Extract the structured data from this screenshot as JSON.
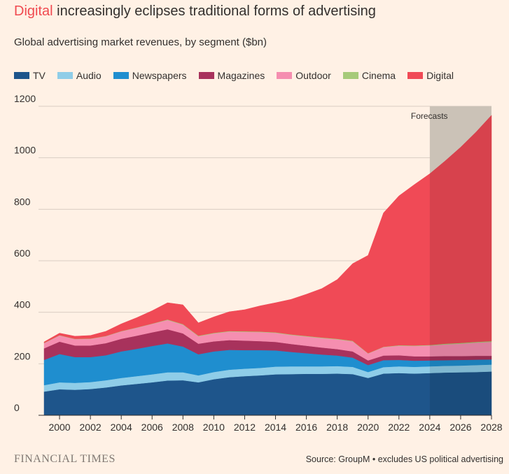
{
  "title": {
    "highlight": "Digital",
    "rest": " increasingly eclipses traditional forms of advertising"
  },
  "subtitle": "Global advertising market revenues, by segment ($bn)",
  "footer": {
    "logo": "FINANCIAL TIMES",
    "source": "Source: GroupM • excludes US political advertising"
  },
  "chart_data": {
    "type": "area",
    "stacked": true,
    "x": [
      1999,
      2000,
      2001,
      2002,
      2003,
      2004,
      2005,
      2006,
      2007,
      2008,
      2009,
      2010,
      2011,
      2012,
      2013,
      2014,
      2015,
      2016,
      2017,
      2018,
      2019,
      2020,
      2021,
      2022,
      2023,
      2024,
      2025,
      2026,
      2027,
      2028
    ],
    "ylim": [
      0,
      1200
    ],
    "yticks": [
      0,
      200,
      400,
      600,
      800,
      1000,
      1200
    ],
    "xticks": [
      2000,
      2002,
      2004,
      2006,
      2008,
      2010,
      2012,
      2014,
      2016,
      2018,
      2020,
      2022,
      2024,
      2026,
      2028
    ],
    "grid": true,
    "legend_position": "top-left",
    "forecast": {
      "label": "Forecasts",
      "start": 2024,
      "end": 2028
    },
    "series": [
      {
        "name": "TV",
        "color": "#1e558b",
        "values": [
          92,
          101,
          99,
          102,
          108,
          116,
          122,
          128,
          135,
          136,
          128,
          140,
          148,
          152,
          155,
          159,
          160,
          161,
          161,
          162,
          160,
          145,
          162,
          164,
          162,
          164,
          166,
          167,
          168,
          170
        ]
      },
      {
        "name": "Audio",
        "color": "#8fcde8",
        "values": [
          25,
          27,
          27,
          27,
          28,
          29,
          30,
          31,
          32,
          31,
          27,
          28,
          29,
          29,
          29,
          30,
          30,
          29,
          29,
          29,
          28,
          23,
          25,
          26,
          26,
          26,
          26,
          26,
          27,
          27
        ]
      },
      {
        "name": "Newspapers",
        "color": "#1f8ecf",
        "values": [
          98,
          110,
          100,
          97,
          97,
          103,
          106,
          110,
          112,
          100,
          82,
          80,
          77,
          72,
          69,
          63,
          56,
          51,
          46,
          41,
          36,
          27,
          27,
          25,
          24,
          23,
          22,
          22,
          21,
          20
        ]
      },
      {
        "name": "Magazines",
        "color": "#a8325c",
        "values": [
          45,
          48,
          45,
          45,
          47,
          49,
          51,
          53,
          55,
          51,
          41,
          39,
          38,
          37,
          35,
          33,
          31,
          29,
          27,
          25,
          24,
          18,
          18,
          18,
          17,
          16,
          16,
          15,
          15,
          14
        ]
      },
      {
        "name": "Outdoor",
        "color": "#f58eb0",
        "values": [
          20,
          24,
          25,
          26,
          27,
          29,
          31,
          33,
          36,
          34,
          29,
          31,
          33,
          34,
          35,
          35,
          35,
          36,
          37,
          38,
          39,
          27,
          33,
          37,
          40,
          42,
          45,
          48,
          51,
          54
        ]
      },
      {
        "name": "Cinema",
        "color": "#a6ca79",
        "values": [
          1,
          1,
          1,
          1,
          1,
          1,
          1,
          1,
          2,
          2,
          2,
          2,
          2,
          2,
          2,
          2,
          2,
          2,
          2,
          2,
          2,
          1,
          1,
          2,
          2,
          2,
          3,
          3,
          3,
          3
        ]
      },
      {
        "name": "Digital",
        "color": "#f04a56",
        "values": [
          4,
          8,
          10,
          12,
          18,
          28,
          38,
          50,
          65,
          75,
          50,
          62,
          75,
          84,
          100,
          115,
          136,
          162,
          190,
          230,
          300,
          380,
          520,
          580,
          625,
          665,
          710,
          760,
          815,
          877
        ]
      }
    ]
  }
}
